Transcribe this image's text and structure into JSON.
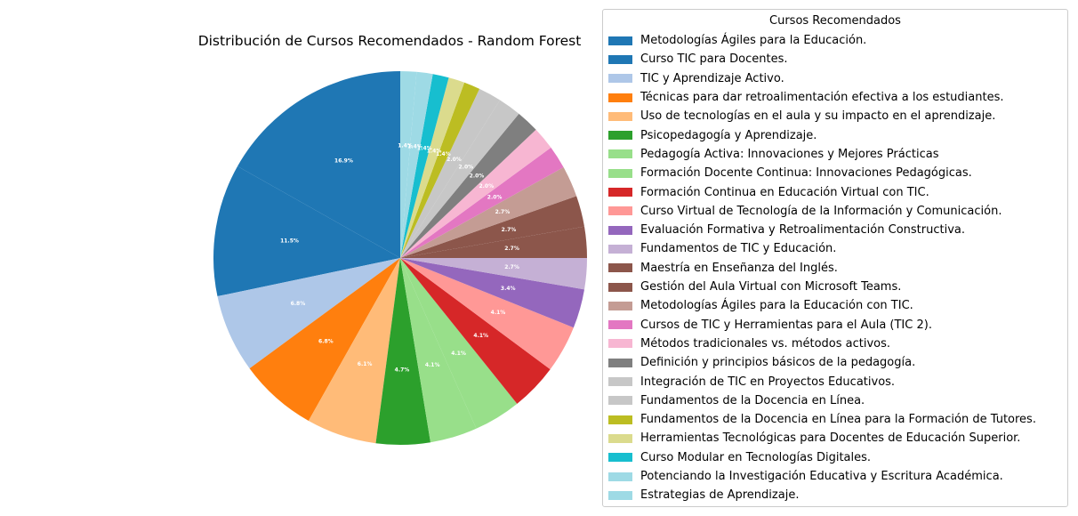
{
  "chart_data": {
    "type": "pie",
    "title": "Distribución de Cursos Recomendados - Random Forest",
    "legend_title": "Cursos Recomendados",
    "legend_position": "right",
    "start_angle_deg": 90,
    "direction": "counterclockwise",
    "slices": [
      {
        "label": "Metodologías Ágiles para la Educación.",
        "value": 16.9,
        "pct_label": "16.9%",
        "color": "#1f77b4"
      },
      {
        "label": "Curso TIC para Docentes.",
        "value": 11.5,
        "pct_label": "11.5%",
        "color": "#1f77b4"
      },
      {
        "label": "TIC y Aprendizaje Activo.",
        "value": 6.8,
        "pct_label": "6.8%",
        "color": "#aec7e8"
      },
      {
        "label": "Técnicas para dar retroalimentación efectiva a los estudiantes.",
        "value": 6.8,
        "pct_label": "6.8%",
        "color": "#ff7f0e"
      },
      {
        "label": "Uso de tecnologías en el aula y su impacto en el aprendizaje.",
        "value": 6.1,
        "pct_label": "6.1%",
        "color": "#ffbb78"
      },
      {
        "label": "Psicopedagogía y Aprendizaje.",
        "value": 4.7,
        "pct_label": "4.7%",
        "color": "#2ca02c"
      },
      {
        "label": "Pedagogía Activa: Innovaciones y Mejores Prácticas",
        "value": 4.1,
        "pct_label": "4.1%",
        "color": "#98df8a"
      },
      {
        "label": "Formación Docente Continua: Innovaciones Pedagógicas.",
        "value": 4.1,
        "pct_label": "4.1%",
        "color": "#98df8a"
      },
      {
        "label": "Formación Continua en Educación Virtual con TIC.",
        "value": 4.1,
        "pct_label": "4.1%",
        "color": "#d62728"
      },
      {
        "label": "Curso Virtual de Tecnología de la Información y Comunicación.",
        "value": 4.1,
        "pct_label": "4.1%",
        "color": "#ff9896"
      },
      {
        "label": "Evaluación Formativa y Retroalimentación Constructiva.",
        "value": 3.4,
        "pct_label": "3.4%",
        "color": "#9467bd"
      },
      {
        "label": "Fundamentos de TIC y Educación.",
        "value": 2.7,
        "pct_label": "2.7%",
        "color": "#c5b0d5"
      },
      {
        "label": "Maestría en Enseñanza del Inglés.",
        "value": 2.7,
        "pct_label": "2.7%",
        "color": "#8c564b"
      },
      {
        "label": "Gestión del Aula Virtual con Microsoft Teams.",
        "value": 2.7,
        "pct_label": "2.7%",
        "color": "#8c564b"
      },
      {
        "label": "Metodologías Ágiles para la Educación con TIC.",
        "value": 2.7,
        "pct_label": "2.7%",
        "color": "#c49c94"
      },
      {
        "label": "Cursos de TIC y Herramientas para el Aula (TIC 2).",
        "value": 2.0,
        "pct_label": "2.0%",
        "color": "#e377c2"
      },
      {
        "label": "Métodos tradicionales vs. métodos activos.",
        "value": 2.0,
        "pct_label": "2.0%",
        "color": "#f7b6d2"
      },
      {
        "label": "Definición y principios básicos de la pedagogía.",
        "value": 2.0,
        "pct_label": "2.0%",
        "color": "#7f7f7f"
      },
      {
        "label": "Integración de TIC en Proyectos Educativos.",
        "value": 2.0,
        "pct_label": "2.0%",
        "color": "#c7c7c7"
      },
      {
        "label": "Fundamentos de la Docencia en Línea.",
        "value": 2.0,
        "pct_label": "2.0%",
        "color": "#c7c7c7"
      },
      {
        "label": "Fundamentos de la Docencia en Línea para la Formación de Tutores.",
        "value": 1.4,
        "pct_label": "1.4%",
        "color": "#bcbd22"
      },
      {
        "label": "Herramientas Tecnológicas para Docentes de Educación Superior.",
        "value": 1.4,
        "pct_label": "1.4%",
        "color": "#dbdb8d"
      },
      {
        "label": "Curso Modular en Tecnologías Digitales.",
        "value": 1.4,
        "pct_label": "1.4%",
        "color": "#17becf"
      },
      {
        "label": "Potenciando la Investigación Educativa y Escritura Académica.",
        "value": 1.4,
        "pct_label": "1.4%",
        "color": "#9edae5"
      },
      {
        "label": "Estrategias de Aprendizaje.",
        "value": 1.4,
        "pct_label": "1.4%",
        "color": "#9edae5"
      }
    ]
  }
}
